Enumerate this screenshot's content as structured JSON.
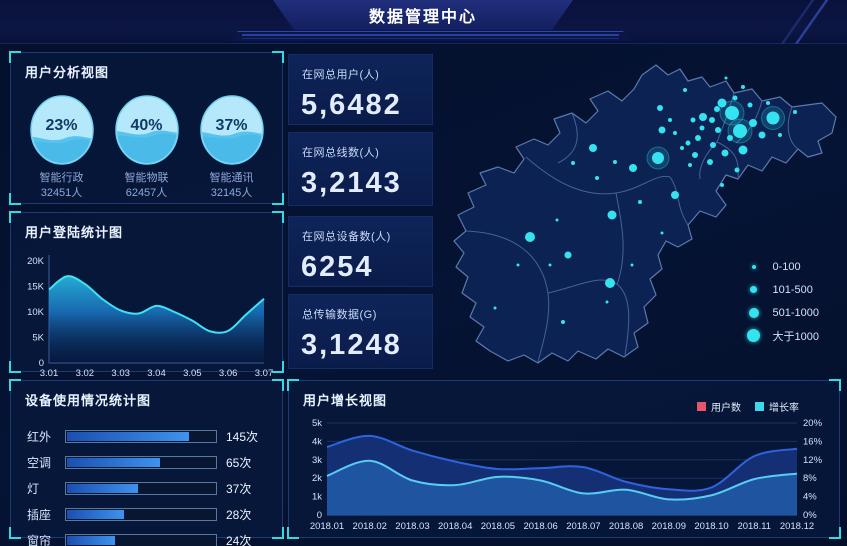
{
  "header": {
    "title": "数据管理中心"
  },
  "panels": {
    "user_analysis": {
      "title": "用户分析视图",
      "gauges": [
        {
          "percent": "23%",
          "percent_value": 23,
          "label": "智能行政",
          "count": "32451人"
        },
        {
          "percent": "40%",
          "percent_value": 40,
          "label": "智能物联",
          "count": "62457人"
        },
        {
          "percent": "37%",
          "percent_value": 37,
          "label": "智能通讯",
          "count": "32145人"
        }
      ]
    },
    "login_stats": {
      "title": "用户登陆统计图"
    },
    "device_usage": {
      "title": "设备使用情况统计图"
    },
    "user_growth": {
      "title": "用户增长视图",
      "legend": [
        {
          "label": "用户数",
          "color": "#e8556a"
        },
        {
          "label": "增长率",
          "color": "#3fd8ea"
        }
      ]
    }
  },
  "stat_cards": [
    {
      "label": "在网总用户(人)",
      "value": "5,6482"
    },
    {
      "label": "在网总线数(人)",
      "value": "3,2143"
    },
    {
      "label": "在网总设备数(人)",
      "value": "6254"
    },
    {
      "label": "总传输数据(G)",
      "value": "3,1248"
    }
  ],
  "map": {
    "dot_color": "#35e3f0",
    "legend": [
      {
        "label": "0-100",
        "size": 4
      },
      {
        "label": "101-500",
        "size": 7
      },
      {
        "label": "501-1000",
        "size": 10
      },
      {
        "label": "大于1000",
        "size": 13
      }
    ],
    "points": [
      [
        302,
        68,
        7
      ],
      [
        310,
        86,
        7
      ],
      [
        343,
        73,
        6.5
      ],
      [
        228,
        113,
        6
      ],
      [
        292,
        58,
        4.5
      ],
      [
        287,
        64,
        3
      ],
      [
        273,
        72,
        4
      ],
      [
        323,
        78,
        4
      ],
      [
        332,
        90,
        3.5
      ],
      [
        313,
        105,
        4.5
      ],
      [
        295,
        108,
        3.5
      ],
      [
        300,
        93,
        3
      ],
      [
        288,
        85,
        3
      ],
      [
        282,
        75,
        3
      ],
      [
        272,
        83,
        2.5
      ],
      [
        263,
        75,
        2.5
      ],
      [
        268,
        93,
        3
      ],
      [
        283,
        100,
        3
      ],
      [
        280,
        117,
        3
      ],
      [
        307,
        125,
        2.5
      ],
      [
        292,
        140,
        2
      ],
      [
        305,
        53,
        2.5
      ],
      [
        313,
        42,
        2
      ],
      [
        255,
        45,
        2
      ],
      [
        230,
        63,
        3
      ],
      [
        245,
        88,
        2
      ],
      [
        258,
        98,
        2.5
      ],
      [
        320,
        60,
        2.5
      ],
      [
        338,
        58,
        2
      ],
      [
        350,
        90,
        2
      ],
      [
        365,
        67,
        2
      ],
      [
        252,
        103,
        2
      ],
      [
        240,
        75,
        2
      ],
      [
        296,
        33,
        1.5
      ],
      [
        260,
        120,
        2
      ],
      [
        203,
        123,
        4
      ],
      [
        245,
        150,
        4
      ],
      [
        265,
        110,
        3
      ],
      [
        232,
        85,
        3.5
      ],
      [
        185,
        117,
        2
      ],
      [
        143,
        118,
        2
      ],
      [
        167,
        133,
        2
      ],
      [
        210,
        157,
        2
      ],
      [
        163,
        103,
        4
      ],
      [
        127,
        175,
        1.5
      ],
      [
        232,
        188,
        1.5
      ],
      [
        100,
        192,
        5
      ],
      [
        182,
        170,
        4.5
      ],
      [
        180,
        238,
        5
      ],
      [
        138,
        210,
        3.5
      ],
      [
        120,
        220,
        1.5
      ],
      [
        88,
        220,
        1.5
      ],
      [
        65,
        263,
        1.5
      ],
      [
        202,
        220,
        1.5
      ],
      [
        177,
        257,
        1.5
      ],
      [
        133,
        277,
        2
      ]
    ]
  },
  "chart_data": [
    {
      "id": "login",
      "type": "area",
      "title": "用户登陆统计图",
      "xlabels": [
        "3.01",
        "3.02",
        "3.03",
        "3.04",
        "3.05",
        "3.06",
        "3.07"
      ],
      "ylabels": [
        "0",
        "5K",
        "10K",
        "15K",
        "20K"
      ],
      "ylim": [
        0,
        20
      ],
      "values_k": [
        14.4,
        17.0,
        15.5,
        12.5,
        10.3,
        9.7,
        11.2,
        10.0,
        8.3,
        6.2,
        6.3,
        9.5,
        12.6
      ],
      "line_color": "#3ee2f2"
    },
    {
      "id": "device",
      "type": "bar",
      "title": "设备使用情况统计图",
      "categories": [
        "红外",
        "空调",
        "灯",
        "插座",
        "窗帘"
      ],
      "values": [
        145,
        65,
        37,
        28,
        24
      ],
      "value_labels": [
        "145次",
        "65次",
        "37次",
        "28次",
        "24次"
      ],
      "fill_pct": [
        81,
        62,
        47,
        38,
        32
      ],
      "bar_color": "#3e93ee"
    },
    {
      "id": "growth",
      "type": "dual-area",
      "title": "用户增长视图",
      "xlabels": [
        "2018.01",
        "2018.02",
        "2018.03",
        "2018.04",
        "2018.05",
        "2018.06",
        "2018.07",
        "2018.08",
        "2018.09",
        "2018.10",
        "2018.11",
        "2018.12"
      ],
      "left_ylabels": [
        "0",
        "1k",
        "2k",
        "3k",
        "4k",
        "5k"
      ],
      "right_ylabels": [
        "0%",
        "4%",
        "8%",
        "12%",
        "16%",
        "20%"
      ],
      "left_ylim": [
        0,
        5
      ],
      "right_ylim": [
        0,
        20
      ],
      "legend_position": "top-right",
      "series": [
        {
          "name": "用户数",
          "axis": "left",
          "values": [
            3.7,
            4.3,
            3.5,
            2.9,
            2.5,
            2.55,
            2.6,
            1.8,
            1.4,
            1.5,
            3.2,
            3.6
          ],
          "line_color": "#2e63e0",
          "fill_color": "rgba(21,48,118,0.95)"
        },
        {
          "name": "增长率",
          "axis": "right",
          "values": [
            8.5,
            11.8,
            7.5,
            6.5,
            8.3,
            7.5,
            4.7,
            5.5,
            3.4,
            4.3,
            7.8,
            9.0
          ],
          "line_color": "#57cdf4",
          "fill_color": "rgba(38,116,198,0.55)"
        }
      ]
    }
  ]
}
